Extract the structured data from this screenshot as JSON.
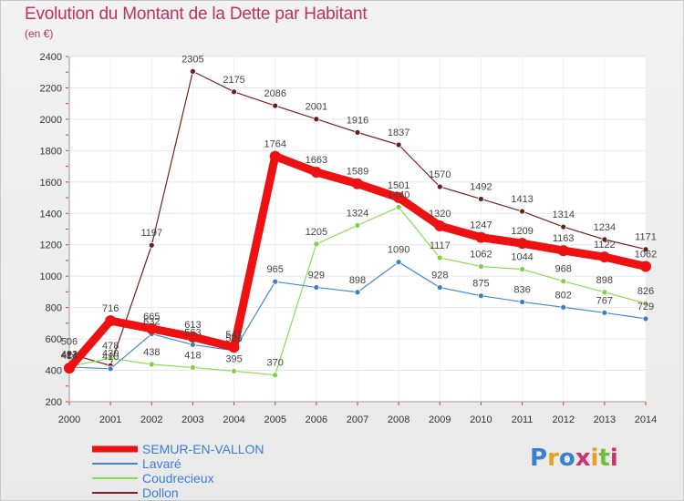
{
  "header": {
    "title": "Evolution du Montant de la Dette par Habitant",
    "subtitle": "(en €)"
  },
  "logo": {
    "text": "Proxiti"
  },
  "chart_data": {
    "type": "line",
    "title": "Evolution du Montant de la Dette par Habitant",
    "subtitle": "(en €)",
    "xlabel": "",
    "ylabel": "",
    "x": [
      2000,
      2001,
      2002,
      2003,
      2004,
      2005,
      2006,
      2007,
      2008,
      2009,
      2010,
      2011,
      2012,
      2013,
      2014
    ],
    "ylim": [
      200,
      2400
    ],
    "yticks": [
      200,
      400,
      600,
      800,
      1000,
      1200,
      1400,
      1600,
      1800,
      2000,
      2200,
      2400
    ],
    "grid": "horizontal",
    "legend": "bottom-left",
    "series": [
      {
        "name": "SEMUR-EN-VALLON",
        "color": "#ee1111",
        "values": [
          414,
          716,
          665,
          613,
          547,
          1764,
          1663,
          1589,
          1501,
          1320,
          1247,
          1209,
          1163,
          1122,
          1062
        ]
      },
      {
        "name": "Lavaré",
        "color": "#4488cc",
        "values": [
          421,
          410,
          632,
          563,
          526,
          965,
          929,
          898,
          1090,
          928,
          875,
          836,
          802,
          767,
          729
        ]
      },
      {
        "name": "Coudrecieux",
        "color": "#88dd55",
        "values": [
          423,
          478,
          438,
          418,
          395,
          370,
          1205,
          1324,
          1440,
          1117,
          1062,
          1044,
          968,
          898,
          826
        ]
      },
      {
        "name": "Dollon",
        "color": "#772222",
        "values": [
          506,
          430,
          1197,
          2305,
          2175,
          2086,
          2001,
          1916,
          1837,
          1570,
          1492,
          1413,
          1314,
          1234,
          1171
        ]
      }
    ]
  }
}
